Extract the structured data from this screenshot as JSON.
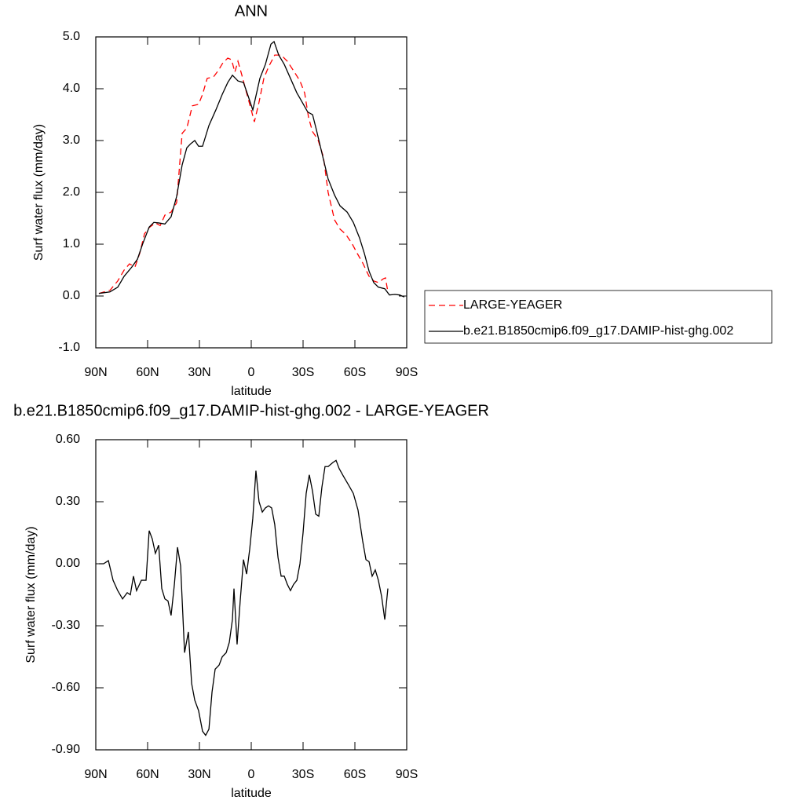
{
  "chart_data": [
    {
      "type": "line",
      "title": "ANN",
      "xlabel": "latitude",
      "ylabel": "Surf water flux (mm/day)",
      "xlim": [
        90,
        -90
      ],
      "ylim": [
        -1,
        5
      ],
      "xticks": [
        {
          "value": 90,
          "label": "90N"
        },
        {
          "value": 60,
          "label": "60N"
        },
        {
          "value": 30,
          "label": "30N"
        },
        0,
        {
          "value": -30,
          "label": "30S"
        },
        {
          "value": -60,
          "label": "60S"
        },
        {
          "value": -90,
          "label": "90S"
        }
      ],
      "yticks": [
        {
          "value": -1,
          "label": "-1.0"
        },
        {
          "value": 0,
          "label": "0.0"
        },
        {
          "value": 1,
          "label": "1.0"
        },
        {
          "value": 2,
          "label": "2.0"
        },
        {
          "value": 3,
          "label": "3.0"
        },
        {
          "value": 4,
          "label": "4.0"
        },
        {
          "value": 5,
          "label": "5.0"
        }
      ],
      "legend": "right",
      "series": [
        {
          "name": "LARGE-YEAGER",
          "color": "#ff0000",
          "line_style": "dashed",
          "x": [
            88.2,
            81.8,
            77.3,
            73.6,
            70.5,
            67.3,
            64.5,
            61.8,
            59.1,
            55.5,
            52.7,
            50,
            46.4,
            43.2,
            40,
            37.3,
            34.1,
            30.5,
            28.2,
            25.5,
            21.8,
            19.1,
            16.4,
            13.6,
            11.4,
            9.5,
            7.7,
            5.5,
            2.7,
            0,
            -1.8,
            -4.5,
            -7.3,
            -10,
            -13.6,
            -17.3,
            -20.9,
            -25,
            -28.2,
            -30.9,
            -33.2,
            -35.5,
            -38.6,
            -41.8,
            -44.5,
            -48.2,
            -51.4,
            -54.5,
            -58.2,
            -61.4,
            -64.5,
            -68.2,
            -70.9,
            -73.6,
            -76.4,
            -77.7,
            -79.1
          ],
          "values": [
            0.05,
            0.11,
            0.29,
            0.5,
            0.62,
            0.56,
            0.83,
            1.2,
            1.32,
            1.41,
            1.36,
            1.56,
            1.62,
            1.8,
            3.14,
            3.24,
            3.67,
            3.7,
            3.89,
            4.2,
            4.23,
            4.35,
            4.5,
            4.59,
            4.56,
            4.32,
            4.53,
            4.27,
            3.92,
            3.59,
            3.36,
            3.74,
            4.2,
            4.42,
            4.65,
            4.65,
            4.53,
            4.32,
            4.15,
            3.92,
            3.44,
            3.17,
            3.02,
            2.68,
            2.0,
            1.47,
            1.29,
            1.2,
            1.02,
            0.82,
            0.64,
            0.38,
            0.29,
            0.26,
            0.33,
            0.35,
            0.08
          ]
        },
        {
          "name": "b.e21.B1850cmip6.f09_g17.DAMIP-hist-ghg.002",
          "color": "#000000",
          "line_style": "solid",
          "x": [
            88.2,
            81.8,
            77.3,
            73.6,
            69.1,
            65.9,
            62.7,
            59.1,
            56.4,
            53.6,
            50,
            46.4,
            43.2,
            40,
            37.3,
            35,
            32.7,
            30.5,
            28.2,
            24.5,
            20.5,
            16.8,
            13.6,
            10.9,
            7.7,
            4.5,
            1.8,
            -0.9,
            -5,
            -8.2,
            -11.4,
            -13.2,
            -15.9,
            -19.1,
            -22.7,
            -26.4,
            -29.5,
            -32.7,
            -35.5,
            -37.7,
            -40.9,
            -44.5,
            -48.2,
            -51.4,
            -55.5,
            -59.1,
            -62.7,
            -65.5,
            -68.2,
            -70.9,
            -73.6,
            -77.3,
            -80,
            -83.2,
            -85.9,
            -88.6
          ],
          "values": [
            0.05,
            0.08,
            0.17,
            0.38,
            0.56,
            0.71,
            1.02,
            1.33,
            1.42,
            1.41,
            1.39,
            1.53,
            1.92,
            2.53,
            2.86,
            2.94,
            3.0,
            2.89,
            2.89,
            3.29,
            3.59,
            3.89,
            4.12,
            4.26,
            4.15,
            4.12,
            3.86,
            3.59,
            4.2,
            4.47,
            4.86,
            4.91,
            4.65,
            4.47,
            4.2,
            3.92,
            3.74,
            3.55,
            3.5,
            3.21,
            2.76,
            2.26,
            1.95,
            1.74,
            1.62,
            1.42,
            1.12,
            0.82,
            0.48,
            0.26,
            0.17,
            0.14,
            0.02,
            0.03,
            0.02,
            -0.02
          ]
        }
      ]
    },
    {
      "type": "line",
      "title": "b.e21.B1850cmip6.f09_g17.DAMIP-hist-ghg.002 - LARGE-YEAGER",
      "xlabel": "latitude",
      "ylabel": "Surf water flux (mm/day)",
      "xlim": [
        90,
        -90
      ],
      "ylim": [
        -0.9,
        0.6
      ],
      "xticks": [
        {
          "value": 90,
          "label": "90N"
        },
        {
          "value": 60,
          "label": "60N"
        },
        {
          "value": 30,
          "label": "30N"
        },
        0,
        {
          "value": -30,
          "label": "30S"
        },
        {
          "value": -60,
          "label": "60S"
        },
        {
          "value": -90,
          "label": "90S"
        }
      ],
      "yticks": [
        {
          "value": -0.9,
          "label": "-0.90"
        },
        {
          "value": -0.6,
          "label": "-0.60"
        },
        {
          "value": -0.3,
          "label": "-0.30"
        },
        {
          "value": 0,
          "label": "0.00"
        },
        {
          "value": 0.3,
          "label": "0.30"
        },
        {
          "value": 0.6,
          "label": "0.60"
        }
      ],
      "color": "#000000",
      "line_style": "solid",
      "x": [
        88.2,
        85.5,
        82.7,
        80,
        77.3,
        74.5,
        71.8,
        70,
        68.2,
        66.4,
        63.6,
        60.9,
        59.1,
        57.3,
        55.5,
        53.6,
        51.8,
        50,
        48.2,
        46.4,
        44.5,
        42.7,
        40.9,
        38.6,
        36.4,
        34.5,
        32.7,
        30.5,
        28.2,
        26.4,
        24.5,
        22.7,
        20.9,
        18.6,
        16.8,
        14.5,
        12.7,
        10.9,
        10,
        8.2,
        6.4,
        4.5,
        2.7,
        0.9,
        -0.9,
        -2.7,
        -4.5,
        -6.4,
        -8.2,
        -10,
        -11.8,
        -13.6,
        -15.5,
        -17.3,
        -19.1,
        -20.9,
        -22.7,
        -24.5,
        -26.4,
        -28.2,
        -30,
        -31.8,
        -33.6,
        -35.5,
        -37.3,
        -39.1,
        -40.9,
        -42.7,
        -44.5,
        -47.3,
        -49.1,
        -50.9,
        -53.6,
        -56.4,
        -59.1,
        -61.8,
        -64.5,
        -66.4,
        -68.2,
        -70,
        -71.8,
        -73.6,
        -75.5,
        -77.3,
        -79.1
      ],
      "values": [
        0.0,
        0.0,
        0.015,
        -0.08,
        -0.13,
        -0.17,
        -0.14,
        -0.15,
        -0.06,
        -0.13,
        -0.08,
        -0.08,
        0.16,
        0.12,
        0.05,
        0.09,
        -0.12,
        -0.17,
        -0.18,
        -0.25,
        -0.1,
        0.08,
        -0.01,
        -0.43,
        -0.33,
        -0.58,
        -0.66,
        -0.71,
        -0.81,
        -0.83,
        -0.8,
        -0.62,
        -0.51,
        -0.49,
        -0.45,
        -0.43,
        -0.38,
        -0.27,
        -0.12,
        -0.39,
        -0.18,
        0.02,
        -0.05,
        0.07,
        0.22,
        0.45,
        0.3,
        0.25,
        0.27,
        0.28,
        0.27,
        0.19,
        0.03,
        -0.06,
        -0.06,
        -0.1,
        -0.13,
        -0.1,
        -0.08,
        0.0,
        0.15,
        0.34,
        0.43,
        0.35,
        0.24,
        0.23,
        0.37,
        0.47,
        0.47,
        0.49,
        0.5,
        0.46,
        0.42,
        0.38,
        0.34,
        0.26,
        0.11,
        0.02,
        0.01,
        -0.06,
        -0.03,
        -0.08,
        -0.16,
        -0.27,
        -0.12
      ]
    }
  ]
}
